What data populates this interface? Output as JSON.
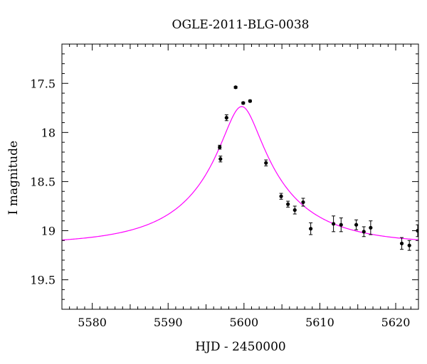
{
  "chart_data": {
    "type": "scatter",
    "title": "OGLE-2011-BLG-0038",
    "xlabel": "HJD - 2450000",
    "ylabel": "I magnitude",
    "xlim": [
      5576,
      5623
    ],
    "ylim": [
      19.8,
      17.1
    ],
    "y_inverted": true,
    "grid": false,
    "x_ticks": [
      5580,
      5590,
      5600,
      5610,
      5620
    ],
    "x_tick_labels": [
      "5580",
      "5590",
      "5600",
      "5610",
      "5620"
    ],
    "y_ticks": [
      17.5,
      18,
      18.5,
      19,
      19.5
    ],
    "y_tick_labels": [
      "17.5",
      "18",
      "18.5",
      "19",
      "19.5"
    ],
    "series": [
      {
        "kind": "points_with_errorbars",
        "color": "#000000",
        "points": [
          {
            "x": 5596.8,
            "y": 18.15,
            "err": 0.02
          },
          {
            "x": 5596.9,
            "y": 18.27,
            "err": 0.03
          },
          {
            "x": 5597.7,
            "y": 17.85,
            "err": 0.03
          },
          {
            "x": 5598.9,
            "y": 17.54,
            "err": 0.01
          },
          {
            "x": 5599.9,
            "y": 17.7,
            "err": 0.01
          },
          {
            "x": 5600.8,
            "y": 17.68,
            "err": 0.01
          },
          {
            "x": 5602.9,
            "y": 18.31,
            "err": 0.03
          },
          {
            "x": 5604.9,
            "y": 18.65,
            "err": 0.03
          },
          {
            "x": 5605.8,
            "y": 18.73,
            "err": 0.03
          },
          {
            "x": 5606.7,
            "y": 18.79,
            "err": 0.04
          },
          {
            "x": 5607.8,
            "y": 18.71,
            "err": 0.04
          },
          {
            "x": 5608.8,
            "y": 18.98,
            "err": 0.06
          },
          {
            "x": 5611.8,
            "y": 18.93,
            "err": 0.08
          },
          {
            "x": 5612.8,
            "y": 18.94,
            "err": 0.07
          },
          {
            "x": 5614.8,
            "y": 18.94,
            "err": 0.05
          },
          {
            "x": 5615.8,
            "y": 19.01,
            "err": 0.05
          },
          {
            "x": 5616.7,
            "y": 18.97,
            "err": 0.07
          },
          {
            "x": 5620.8,
            "y": 19.13,
            "err": 0.06
          },
          {
            "x": 5621.8,
            "y": 19.15,
            "err": 0.05
          },
          {
            "x": 5622.9,
            "y": 19.0,
            "err": 0.06
          }
        ]
      },
      {
        "kind": "model_curve",
        "color": "#ff00ff",
        "model": {
          "t0": 5599.7,
          "u0": 0.19,
          "tE": 12.5,
          "I_base": 19.14,
          "fs": 0.61
        }
      }
    ]
  }
}
